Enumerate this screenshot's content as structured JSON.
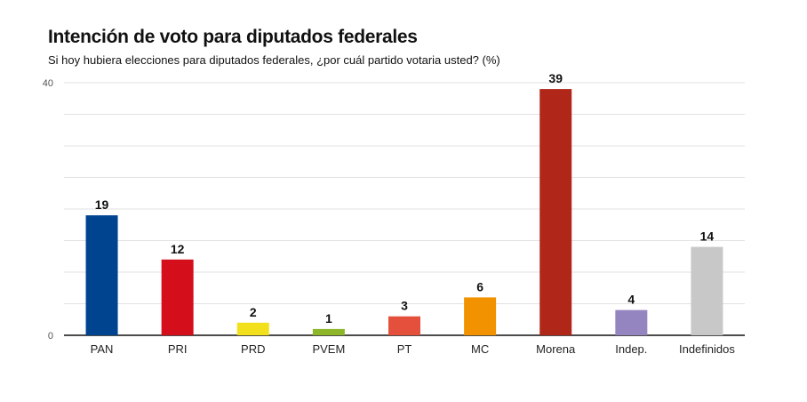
{
  "chart_data": {
    "type": "bar",
    "title": "Intención de voto para diputados federales",
    "subtitle": "Si hoy hubiera elecciones para diputados federales, ¿por cuál partido votaria usted? (%)",
    "categories": [
      "PAN",
      "PRI",
      "PRD",
      "PVEM",
      "PT",
      "MC",
      "Morena",
      "Indep.",
      "Indefinidos"
    ],
    "values": [
      19,
      12,
      2,
      1,
      3,
      6,
      39,
      4,
      14
    ],
    "colors": [
      "#00448f",
      "#d40f1b",
      "#f3e01c",
      "#8db62a",
      "#e4503c",
      "#f39200",
      "#b0271a",
      "#9484bf",
      "#c8c8c8"
    ],
    "ylim": [
      0,
      40
    ],
    "y_tick_labels": [
      "0",
      "40"
    ],
    "grid": true,
    "xlabel": "",
    "ylabel": ""
  }
}
